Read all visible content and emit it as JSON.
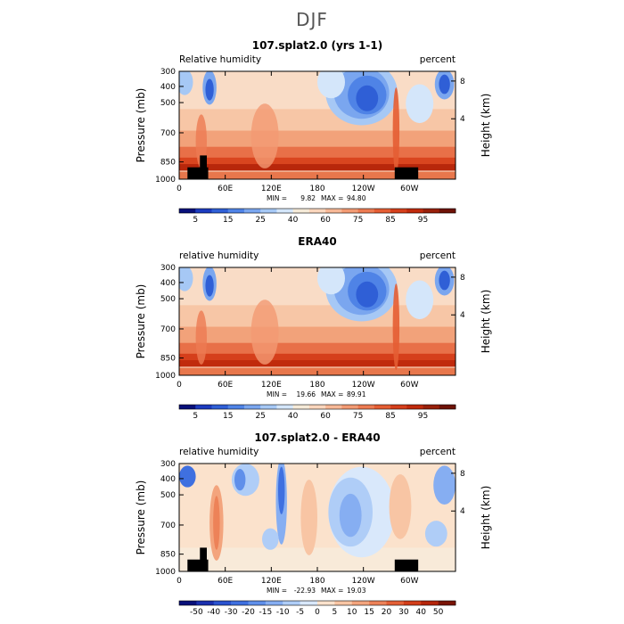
{
  "figure_title": "DJF",
  "chart_data": [
    {
      "type": "heatmap",
      "title": "107.splat2.0 (yrs 1-1)",
      "left_label": "Relative humidity",
      "right_label": "percent",
      "xlabel": "",
      "ylabel": "Pressure (mb)",
      "y2label": "Height (km)",
      "x_ticks": [
        "0",
        "60E",
        "120E",
        "180",
        "120W",
        "60W"
      ],
      "y_ticks": [
        "300",
        "400",
        "500",
        "700",
        "850",
        "1000"
      ],
      "y2_ticks": [
        "8",
        "4"
      ],
      "min_text": "MIN =",
      "min_value": "9.82",
      "max_text": "MAX =",
      "max_value": "94.80",
      "colorbar_labels": [
        "5",
        "15",
        "25",
        "40",
        "60",
        "75",
        "85",
        "95"
      ],
      "colorbar_colors": [
        "#08107a",
        "#1c3bbf",
        "#2f5fd6",
        "#4f83e6",
        "#7aa6ef",
        "#a6c8f5",
        "#d4e6fa",
        "#f5ead8",
        "#fad6bd",
        "#f7b896",
        "#f29a73",
        "#ec7b52",
        "#e45d33",
        "#d53f1b",
        "#c02a0c",
        "#98200a",
        "#6e1206"
      ],
      "colorbar_ticks_after": [
        1,
        3,
        5,
        7,
        9,
        11,
        13,
        15
      ]
    },
    {
      "type": "heatmap",
      "title": "ERA40",
      "left_label": "relative humidity",
      "right_label": "percent",
      "xlabel": "",
      "ylabel": "Pressure (mb)",
      "y2label": "Height (km)",
      "x_ticks": [
        "0",
        "60E",
        "120E",
        "180",
        "120W",
        "60W"
      ],
      "y_ticks": [
        "300",
        "400",
        "500",
        "700",
        "850",
        "1000"
      ],
      "y2_ticks": [
        "8",
        "4"
      ],
      "min_text": "MIN =",
      "min_value": "19.66",
      "max_text": "MAX =",
      "max_value": "89.91",
      "colorbar_labels": [
        "5",
        "15",
        "25",
        "40",
        "60",
        "75",
        "85",
        "95"
      ],
      "colorbar_colors": [
        "#08107a",
        "#1c3bbf",
        "#2f5fd6",
        "#4f83e6",
        "#7aa6ef",
        "#a6c8f5",
        "#d4e6fa",
        "#f5ead8",
        "#fad6bd",
        "#f7b896",
        "#f29a73",
        "#ec7b52",
        "#e45d33",
        "#d53f1b",
        "#c02a0c",
        "#98200a",
        "#6e1206"
      ],
      "colorbar_ticks_after": [
        1,
        3,
        5,
        7,
        9,
        11,
        13,
        15
      ]
    },
    {
      "type": "heatmap",
      "title": "107.splat2.0 - ERA40",
      "left_label": "relative humidity",
      "right_label": "percent",
      "xlabel": "",
      "ylabel": "Pressure (mb)",
      "y2label": "Height (km)",
      "x_ticks": [
        "0",
        "60E",
        "120E",
        "180",
        "120W",
        "60W"
      ],
      "y_ticks": [
        "300",
        "400",
        "500",
        "700",
        "850",
        "1000"
      ],
      "y2_ticks": [
        "8",
        "4"
      ],
      "min_text": "MIN =",
      "min_value": "-22.93",
      "max_text": "MAX =",
      "max_value": "19.03",
      "colorbar_labels": [
        "-50",
        "-40",
        "-30",
        "-20",
        "-15",
        "-10",
        "-5",
        "0",
        "5",
        "10",
        "15",
        "20",
        "30",
        "40",
        "50"
      ],
      "colorbar_colors": [
        "#08107a",
        "#1a2fae",
        "#2a52cf",
        "#3f70e0",
        "#5f8fea",
        "#86aef2",
        "#afcdf7",
        "#d9e8fb",
        "#fbe2cc",
        "#f8c5a4",
        "#f3a47d",
        "#ed8258",
        "#e35f36",
        "#d23e1a",
        "#b5250a",
        "#7a1406"
      ],
      "colorbar_ticks_after": [
        1,
        2,
        3,
        4,
        5,
        6,
        7,
        8,
        9,
        10,
        11,
        12,
        13,
        14,
        15
      ]
    }
  ]
}
